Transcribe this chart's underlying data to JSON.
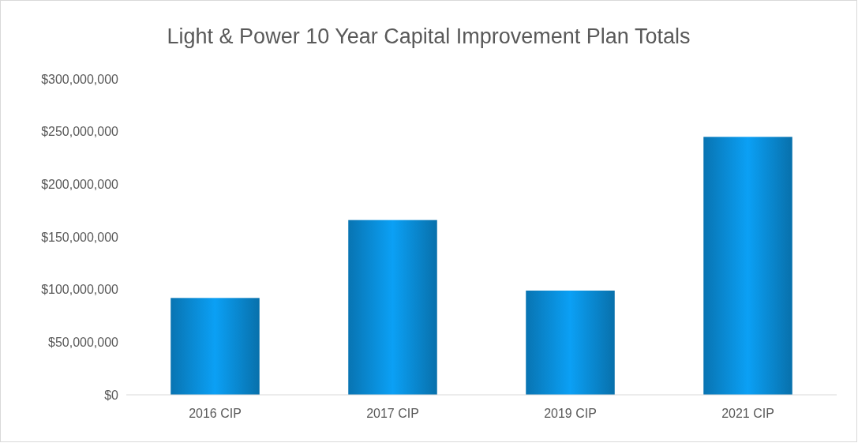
{
  "chart_data": {
    "type": "bar",
    "title": "Light & Power 10 Year Capital Improvement Plan Totals",
    "categories": [
      "2016 CIP",
      "2017 CIP",
      "2019 CIP",
      "2021 CIP"
    ],
    "values": [
      92000000,
      166000000,
      99000000,
      245000000
    ],
    "color": "#0a90dc",
    "ylim": [
      0,
      300000000
    ],
    "yticks": [
      {
        "value": 0,
        "label": "$0"
      },
      {
        "value": 50000000,
        "label": "$50,000,000"
      },
      {
        "value": 100000000,
        "label": "$100,000,000"
      },
      {
        "value": 150000000,
        "label": "$150,000,000"
      },
      {
        "value": 200000000,
        "label": "$200,000,000"
      },
      {
        "value": 250000000,
        "label": "$250,000,000"
      },
      {
        "value": 300000000,
        "label": "$300,000,000"
      }
    ],
    "grid": false
  }
}
